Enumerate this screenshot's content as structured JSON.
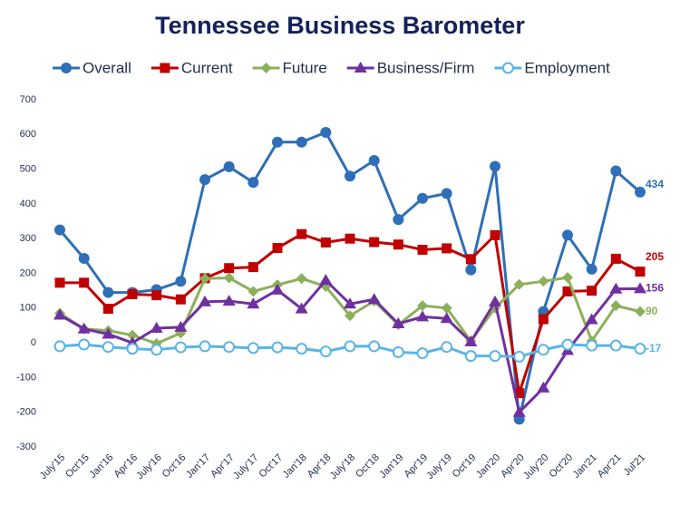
{
  "chart_data": {
    "type": "line",
    "title": "Tennessee Business Barometer",
    "categories": [
      "July'15",
      "Oct'15",
      "Jan'16",
      "Apr'16",
      "July'16",
      "Oct'16",
      "Jan'17",
      "Apr'17",
      "July'17",
      "Oct'17",
      "Jan'18",
      "Apr'18",
      "July'18",
      "Oct'18",
      "Jan'19",
      "Apr'19",
      "July'19",
      "Oct'19",
      "Jan'20",
      "Apr'20",
      "July'20",
      "Oct'20",
      "Jan'21",
      "Apr'21",
      "Jul'21"
    ],
    "series": [
      {
        "name": "Overall",
        "color": "#2e6fb7",
        "marker": "circle",
        "values": [
          325,
          243,
          145,
          145,
          153,
          177,
          470,
          507,
          462,
          578,
          578,
          606,
          480,
          525,
          355,
          416,
          430,
          210,
          508,
          -220,
          90,
          310,
          212,
          495,
          434
        ]
      },
      {
        "name": "Current",
        "color": "#c00000",
        "marker": "square",
        "values": [
          173,
          173,
          98,
          140,
          137,
          125,
          186,
          215,
          218,
          273,
          313,
          289,
          300,
          290,
          283,
          268,
          272,
          241,
          310,
          -145,
          68,
          148,
          150,
          242,
          205
        ]
      },
      {
        "name": "Future",
        "color": "#8cb05a",
        "marker": "diamond",
        "values": [
          85,
          40,
          35,
          22,
          -2,
          28,
          185,
          187,
          148,
          167,
          185,
          162,
          78,
          120,
          52,
          107,
          100,
          5,
          100,
          168,
          177,
          188,
          5,
          107,
          90
        ]
      },
      {
        "name": "Business/Firm",
        "color": "#7030a0",
        "marker": "triangle",
        "values": [
          80,
          40,
          25,
          0,
          42,
          45,
          118,
          120,
          112,
          152,
          98,
          180,
          112,
          125,
          55,
          75,
          70,
          3,
          118,
          -200,
          -130,
          -22,
          67,
          155,
          156
        ]
      },
      {
        "name": "Employment",
        "color": "#5ab4e5",
        "marker": "hollow-circle",
        "values": [
          -10,
          -5,
          -12,
          -17,
          -20,
          -13,
          -10,
          -12,
          -15,
          -13,
          -17,
          -25,
          -10,
          -10,
          -27,
          -30,
          -12,
          -38,
          -38,
          -40,
          -20,
          -5,
          -8,
          -8,
          -17
        ]
      }
    ],
    "ylim": [
      -300,
      700
    ],
    "yticks": [
      -300,
      -200,
      -100,
      0,
      100,
      200,
      300,
      400,
      500,
      600,
      700
    ],
    "end_labels": true,
    "grid": false
  }
}
